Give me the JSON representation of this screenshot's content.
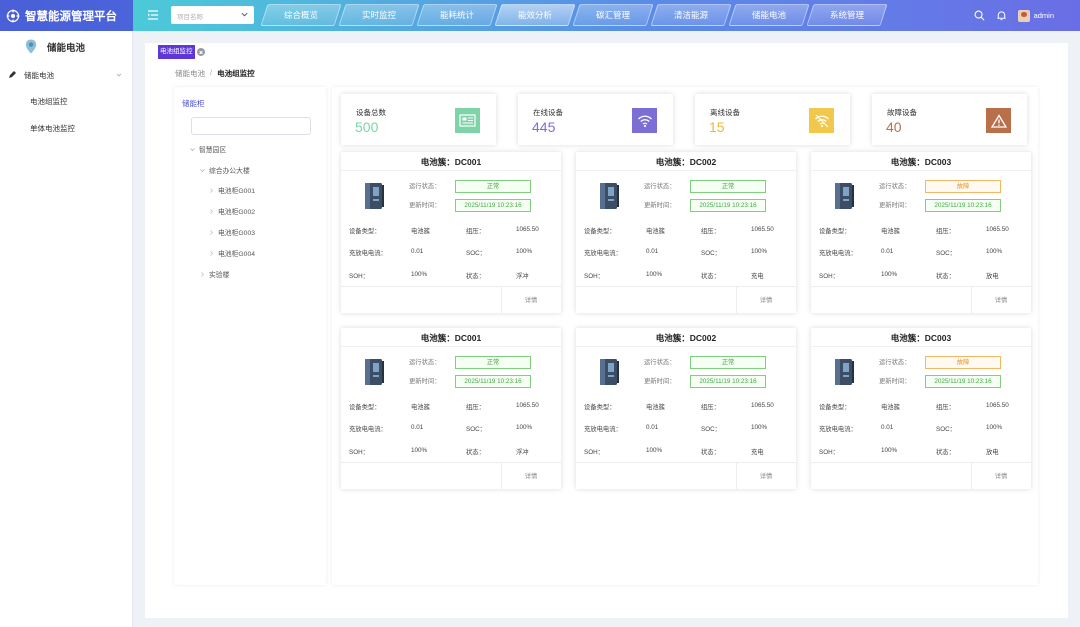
{
  "app": {
    "title": "智慧能源管理平台"
  },
  "header": {
    "project_placeholder": "项目名称",
    "nav": [
      "综合概览",
      "实时监控",
      "能耗统计",
      "能效分析",
      "碳汇管理",
      "清洁能源",
      "储能电池",
      "系统管理"
    ],
    "active_nav": "能效分析",
    "user": "admin"
  },
  "sidebar": {
    "title": "储能电池",
    "group": "储能电池",
    "items": [
      "电池组监控",
      "单体电池监控"
    ]
  },
  "tabs": {
    "active": "电池组监控"
  },
  "breadcrumb": {
    "parent": "储能电池",
    "separator": "/",
    "current": "电池组监控"
  },
  "tree": {
    "title": "储能柜",
    "search_placeholder": "",
    "nodes": [
      "智慧园区",
      "综合办公大楼",
      "电池柜G001",
      "电池柜G002",
      "电池柜G003",
      "电池柜G004",
      "实验楼"
    ]
  },
  "stats": [
    {
      "label": "设备总数",
      "value": "500",
      "color": "#7fd3a8",
      "icon": "monitor-icon"
    },
    {
      "label": "在线设备",
      "value": "445",
      "color": "#7b6fd6",
      "icon": "wifi-icon"
    },
    {
      "label": "离线设备",
      "value": "15",
      "color": "#e9b93a",
      "icon": "wifi-off-icon"
    },
    {
      "label": "故障设备",
      "value": "40",
      "color": "#b86f4a",
      "icon": "warning-icon"
    }
  ],
  "labels": {
    "run_status": "运行状态：",
    "update_time": "更新时间：",
    "device_type": "设备类型：",
    "group_voltage": "组压：",
    "current": "充放电电流：",
    "soc": "SOC：",
    "soh": "SOH：",
    "state": "状态：",
    "detail": "详情"
  },
  "cards": [
    {
      "title": "电池簇：DC001",
      "status": "正常",
      "fault": false,
      "time": "2025/11/19 10:23:16",
      "type": "电池簇",
      "voltage": "1065.50",
      "current": "0.01",
      "soc": "100%",
      "soh": "100%",
      "state": "浮冲"
    },
    {
      "title": "电池簇：DC002",
      "status": "正常",
      "fault": false,
      "time": "2025/11/19 10:23:16",
      "type": "电池簇",
      "voltage": "1065.50",
      "current": "0.01",
      "soc": "100%",
      "soh": "100%",
      "state": "充电"
    },
    {
      "title": "电池簇：DC003",
      "status": "故障",
      "fault": true,
      "time": "2025/11/19 10:23:16",
      "type": "电池簇",
      "voltage": "1065.50",
      "current": "0.01",
      "soc": "100%",
      "soh": "100%",
      "state": "放电"
    },
    {
      "title": "电池簇：DC001",
      "status": "正常",
      "fault": false,
      "time": "2025/11/19 10:23:16",
      "type": "电池簇",
      "voltage": "1065.50",
      "current": "0.01",
      "soc": "100%",
      "soh": "100%",
      "state": "浮冲"
    },
    {
      "title": "电池簇：DC002",
      "status": "正常",
      "fault": false,
      "time": "2025/11/19 10:23:16",
      "type": "电池簇",
      "voltage": "1065.50",
      "current": "0.01",
      "soc": "100%",
      "soh": "100%",
      "state": "充电"
    },
    {
      "title": "电池簇：DC003",
      "status": "故障",
      "fault": true,
      "time": "2025/11/19 10:23:16",
      "type": "电池簇",
      "voltage": "1065.50",
      "current": "0.01",
      "soc": "100%",
      "soh": "100%",
      "state": "放电"
    }
  ]
}
